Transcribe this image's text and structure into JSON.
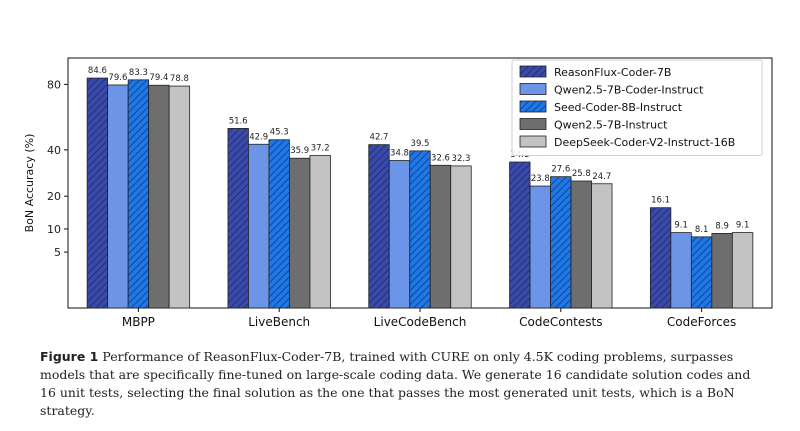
{
  "chart_data": {
    "type": "bar",
    "title": "",
    "xlabel": "",
    "ylabel": "BoN Accuracy (%)",
    "y_scale": "sqrt",
    "ylim": [
      0,
      100
    ],
    "yticks": [
      5,
      10,
      20,
      40,
      80
    ],
    "grid": false,
    "legend_position": "top-right",
    "categories": [
      "MBPP",
      "LiveBench",
      "LiveCodeBench",
      "CodeContests",
      "CodeForces"
    ],
    "series": [
      {
        "name": "ReasonFlux-Coder-7B",
        "values": [
          84.6,
          51.6,
          42.7,
          34.1,
          16.1
        ],
        "color": "#3a4aa8",
        "hatch": true
      },
      {
        "name": "Qwen2.5-7B-Coder-Instruct",
        "values": [
          79.6,
          42.9,
          34.8,
          23.8,
          9.1
        ],
        "color": "#6c95e8",
        "hatch": false
      },
      {
        "name": "Seed-Coder-8B-Instruct",
        "values": [
          83.3,
          45.3,
          39.5,
          27.6,
          8.1
        ],
        "color": "#1e78e6",
        "hatch": true
      },
      {
        "name": "Qwen2.5-7B-Instruct",
        "values": [
          79.4,
          35.9,
          32.6,
          25.8,
          8.9
        ],
        "color": "#6e6e6e",
        "hatch": false
      },
      {
        "name": "DeepSeek-Coder-V2-Instruct-16B",
        "values": [
          78.8,
          37.2,
          32.3,
          24.7,
          9.1
        ],
        "color": "#c3c3c3",
        "hatch": false
      }
    ]
  },
  "caption": {
    "label": "Figure 1",
    "text": "Performance of ReasonFlux-Coder-7B, trained with CURE on only 4.5K coding problems, surpasses models that are specifically fine-tuned on large-scale coding data. We generate 16 candidate solution codes and 16 unit tests, selecting the final solution as the one that passes the most generated unit tests, which is a BoN strategy."
  }
}
